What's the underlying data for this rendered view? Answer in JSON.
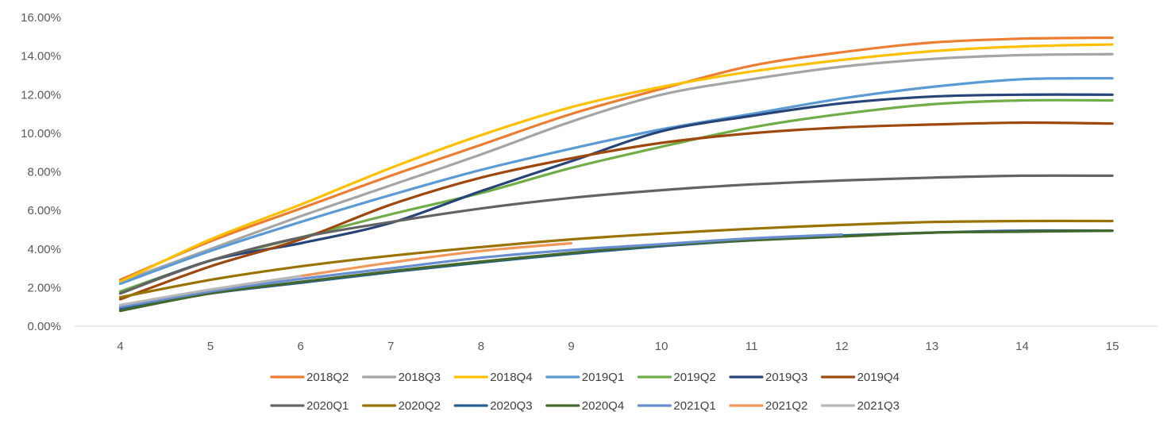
{
  "chart_data": {
    "type": "line",
    "x": [
      4,
      5,
      6,
      7,
      8,
      9,
      10,
      11,
      12,
      13,
      14,
      15
    ],
    "ylim": [
      0,
      16
    ],
    "y_ticks": [
      "0.00%",
      "2.00%",
      "4.00%",
      "6.00%",
      "8.00%",
      "10.00%",
      "12.00%",
      "14.00%",
      "16.00%"
    ],
    "x_ticks": [
      "4",
      "5",
      "6",
      "7",
      "8",
      "9",
      "10",
      "11",
      "12",
      "13",
      "14",
      "15"
    ],
    "grid": "none",
    "legend_position": "bottom",
    "series": [
      {
        "name": "2018Q2",
        "color": "#ED7D31",
        "values": [
          2.4,
          4.4,
          6.1,
          7.8,
          9.4,
          11.0,
          12.3,
          13.5,
          14.2,
          14.7,
          14.9,
          14.95
        ]
      },
      {
        "name": "2018Q3",
        "color": "#A5A5A5",
        "values": [
          2.3,
          4.0,
          5.7,
          7.3,
          8.9,
          10.6,
          12.0,
          12.8,
          13.45,
          13.85,
          14.05,
          14.1
        ]
      },
      {
        "name": "2018Q4",
        "color": "#FFC000",
        "values": [
          2.3,
          4.5,
          6.3,
          8.2,
          9.9,
          11.35,
          12.4,
          13.2,
          13.8,
          14.25,
          14.5,
          14.6
        ]
      },
      {
        "name": "2019Q1",
        "color": "#5B9BD5",
        "values": [
          2.2,
          3.9,
          5.4,
          6.8,
          8.1,
          9.2,
          10.2,
          11.0,
          11.8,
          12.4,
          12.8,
          12.85
        ]
      },
      {
        "name": "2019Q2",
        "color": "#70AD47",
        "values": [
          1.8,
          3.4,
          4.6,
          5.8,
          6.9,
          8.2,
          9.3,
          10.3,
          11.0,
          11.5,
          11.7,
          11.7
        ]
      },
      {
        "name": "2019Q3",
        "color": "#264478",
        "values": [
          1.7,
          3.4,
          4.3,
          5.35,
          7.0,
          8.55,
          10.1,
          10.9,
          11.55,
          11.9,
          12.0,
          12.0
        ]
      },
      {
        "name": "2019Q4",
        "color": "#9E480E",
        "values": [
          1.4,
          3.1,
          4.5,
          6.3,
          7.7,
          8.7,
          9.5,
          10.0,
          10.3,
          10.45,
          10.55,
          10.5
        ]
      },
      {
        "name": "2020Q1",
        "color": "#636363",
        "values": [
          1.7,
          3.4,
          4.6,
          5.4,
          6.1,
          6.65,
          7.05,
          7.35,
          7.55,
          7.7,
          7.8,
          7.8
        ]
      },
      {
        "name": "2020Q2",
        "color": "#997300",
        "values": [
          1.5,
          2.4,
          3.1,
          3.65,
          4.1,
          4.5,
          4.8,
          5.05,
          5.25,
          5.4,
          5.45,
          5.45
        ]
      },
      {
        "name": "2020Q3",
        "color": "#255E91",
        "values": [
          0.9,
          1.7,
          2.25,
          2.8,
          3.3,
          3.75,
          4.15,
          4.45,
          4.7,
          4.85,
          4.95,
          4.95
        ]
      },
      {
        "name": "2020Q4",
        "color": "#43682B",
        "values": [
          0.8,
          1.7,
          2.3,
          2.85,
          3.35,
          3.8,
          4.2,
          4.45,
          4.65,
          4.85,
          4.9,
          4.95
        ]
      },
      {
        "name": "2021Q1",
        "color": "#698ED0",
        "values": [
          1.0,
          1.8,
          2.45,
          3.0,
          3.55,
          3.95,
          4.25,
          4.55,
          4.75,
          null,
          null,
          null
        ]
      },
      {
        "name": "2021Q2",
        "color": "#F1975A",
        "values": [
          null,
          null,
          2.6,
          3.3,
          3.9,
          4.3,
          null,
          null,
          null,
          null,
          null,
          null
        ]
      },
      {
        "name": "2021Q3",
        "color": "#B7B7B7",
        "values": [
          1.1,
          1.9,
          2.6,
          null,
          null,
          null,
          null,
          null,
          null,
          null,
          null,
          null
        ]
      }
    ]
  }
}
